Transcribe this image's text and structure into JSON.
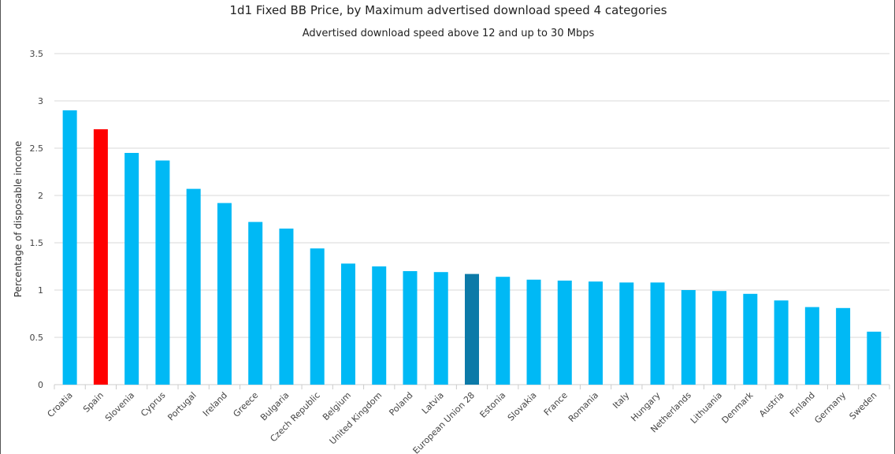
{
  "chart_data": {
    "type": "bar",
    "title": "1d1 Fixed BB Price, by Maximum advertised download speed 4 categories",
    "subtitle": "Advertised download speed above 12 and up to 30 Mbps",
    "xlabel": "",
    "ylabel": "Percentage of disposable income",
    "ylim": [
      0,
      3.5
    ],
    "yticks": [
      0,
      0.5,
      1,
      1.5,
      2,
      2.5,
      3,
      3.5
    ],
    "grid": true,
    "categories": [
      "Croatia",
      "Spain",
      "Slovenia",
      "Cyprus",
      "Portugal",
      "Ireland",
      "Greece",
      "Bulgaria",
      "Czech Republic",
      "Belgium",
      "United Kingdom",
      "Poland",
      "Latvia",
      "European Union 28",
      "Estonia",
      "Slovakia",
      "France",
      "Romania",
      "Italy",
      "Hungary",
      "Netherlands",
      "Lithuania",
      "Denmark",
      "Austria",
      "Finland",
      "Germany",
      "Sweden"
    ],
    "values": [
      2.9,
      2.7,
      2.45,
      2.37,
      2.07,
      1.92,
      1.72,
      1.65,
      1.44,
      1.28,
      1.25,
      1.2,
      1.19,
      1.17,
      1.14,
      1.11,
      1.1,
      1.09,
      1.08,
      1.08,
      1.0,
      0.99,
      0.96,
      0.89,
      0.82,
      0.81,
      0.56
    ],
    "colors": {
      "default": "#00b9f5",
      "highlight": "#ff0000",
      "average": "#0c7aa8",
      "grid": "#d8d8d8",
      "axis": "#cccccc"
    },
    "highlight_category": "Spain",
    "average_category": "European Union 28"
  }
}
